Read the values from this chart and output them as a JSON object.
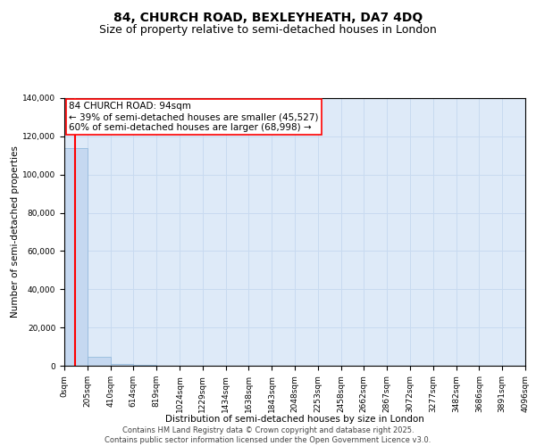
{
  "title": "84, CHURCH ROAD, BEXLEYHEATH, DA7 4DQ",
  "subtitle": "Size of property relative to semi-detached houses in London",
  "xlabel": "Distribution of semi-detached houses by size in London",
  "ylabel": "Number of semi-detached properties",
  "bar_values": [
    114000,
    4500,
    800,
    300,
    150,
    80,
    50,
    30,
    20,
    15,
    10,
    8,
    6,
    5,
    4,
    3,
    2,
    2,
    1,
    1
  ],
  "bin_edges": [
    0,
    205,
    410,
    614,
    819,
    1024,
    1229,
    1434,
    1638,
    1843,
    2048,
    2253,
    2458,
    2662,
    2867,
    3072,
    3277,
    3482,
    3686,
    3891,
    4096
  ],
  "tick_labels": [
    "0sqm",
    "205sqm",
    "410sqm",
    "614sqm",
    "819sqm",
    "1024sqm",
    "1229sqm",
    "1434sqm",
    "1638sqm",
    "1843sqm",
    "2048sqm",
    "2253sqm",
    "2458sqm",
    "2662sqm",
    "2867sqm",
    "3072sqm",
    "3277sqm",
    "3482sqm",
    "3686sqm",
    "3891sqm",
    "4096sqm"
  ],
  "ylim": [
    0,
    140000
  ],
  "yticks": [
    0,
    20000,
    40000,
    60000,
    80000,
    100000,
    120000,
    140000
  ],
  "bar_color": "#c5d8f0",
  "bar_edgecolor": "#8ab4d8",
  "bar_linewidth": 0.5,
  "red_line_x": 94,
  "annotation_line1": "84 CHURCH ROAD: 94sqm",
  "annotation_line2": "← 39% of semi-detached houses are smaller (45,527)",
  "annotation_line3": "60% of semi-detached houses are larger (68,998) →",
  "annotation_box_edgecolor": "red",
  "annotation_box_facecolor": "white",
  "red_line_color": "red",
  "grid_color": "#c8daf0",
  "background_color": "#deeaf8",
  "footer_text": "Contains HM Land Registry data © Crown copyright and database right 2025.\nContains public sector information licensed under the Open Government Licence v3.0.",
  "title_fontsize": 10,
  "subtitle_fontsize": 9,
  "axis_label_fontsize": 7.5,
  "tick_fontsize": 6.5,
  "annotation_fontsize": 7.5,
  "footer_fontsize": 6
}
